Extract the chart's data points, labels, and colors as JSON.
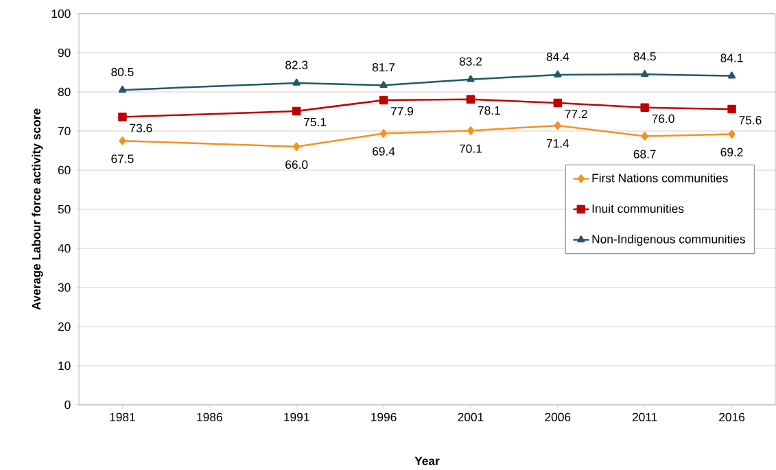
{
  "chart_data": {
    "type": "line",
    "xlabel": "Year",
    "ylabel": "Average Labour force activity score",
    "x": [
      1981,
      1991,
      1996,
      2001,
      2006,
      2011,
      2016
    ],
    "series": [
      {
        "name": "First Nations communities",
        "color": "#f39220",
        "marker": "diamond",
        "values": [
          67.5,
          66.0,
          69.4,
          70.1,
          71.4,
          68.7,
          69.2
        ],
        "value_labels": [
          "67.5",
          "66.0",
          "69.4",
          "70.1",
          "71.4",
          "68.7",
          "69.2"
        ]
      },
      {
        "name": "Inuit communities",
        "color": "#c00000",
        "marker": "square",
        "values": [
          73.6,
          75.1,
          77.9,
          78.1,
          77.2,
          76.0,
          75.6
        ],
        "value_labels": [
          "73.6",
          "75.1",
          "77.9",
          "78.1",
          "77.2",
          "76.0",
          "75.6"
        ]
      },
      {
        "name": "Non-Indigenous communities",
        "color": "#215968",
        "marker": "triangle",
        "values": [
          80.5,
          82.3,
          81.7,
          83.2,
          84.4,
          84.5,
          84.1
        ],
        "value_labels": [
          "80.5",
          "82.3",
          "81.7",
          "83.2",
          "84.4",
          "84.5",
          "84.1"
        ]
      }
    ],
    "xlim": [
      1978.5,
      2018.5
    ],
    "xticks": [
      1981,
      1986,
      1991,
      1996,
      2001,
      2006,
      2011,
      2016
    ],
    "ylim": [
      0,
      100
    ],
    "yticks": [
      0,
      10,
      20,
      30,
      40,
      50,
      60,
      70,
      80,
      90,
      100
    ],
    "grid": "y",
    "legend": "right"
  }
}
